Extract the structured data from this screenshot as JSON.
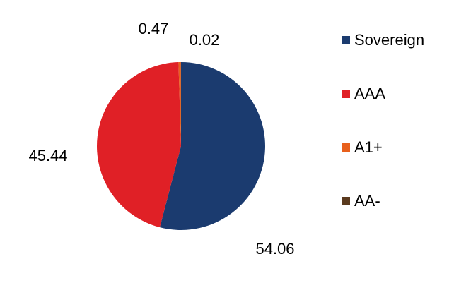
{
  "chart_data": {
    "type": "pie",
    "categories": [
      "Sovereign",
      "AAA",
      "A1+",
      "AA-"
    ],
    "values": [
      54.06,
      45.44,
      0.47,
      0.02
    ],
    "colors": [
      "#1b3b6f",
      "#e02026",
      "#e8601c",
      "#5a3a1e"
    ],
    "data_labels": [
      "54.06",
      "45.44",
      "0.47",
      "0.02"
    ],
    "title": "",
    "legend_position": "right"
  }
}
